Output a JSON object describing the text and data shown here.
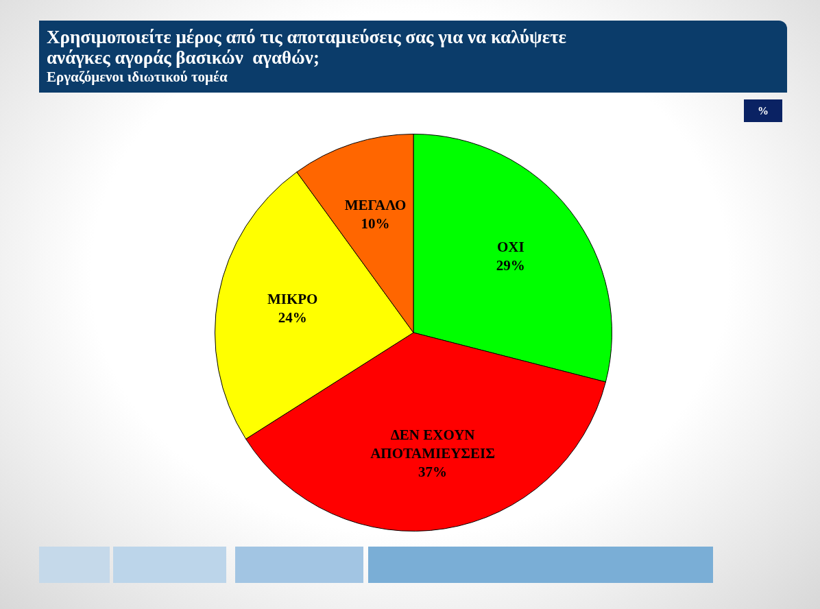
{
  "chart_data": {
    "type": "pie",
    "title": "Χρησιμοποιείτε μέρος από τις αποταμιεύσεις σας για να καλύψετε ανάγκες αγοράς βασικών  αγαθών;",
    "subtitle": "Εργαζόμενοι ιδιωτικού τομέα",
    "categories": [
      "ΟΧΙ",
      "ΔΕΝ ΕΧΟΥΝ ΑΠΟΤΑΜΙΕΥΣΕΙΣ",
      "ΜΙΚΡΟ",
      "ΜΕΓΑΛΟ"
    ],
    "values": [
      29,
      37,
      24,
      10
    ],
    "value_labels": [
      "29%",
      "37%",
      "24%",
      "10%"
    ],
    "colors": [
      "#00ff00",
      "#ff0000",
      "#ffff00",
      "#ff6600"
    ],
    "annotations": [
      "%"
    ],
    "legend": false
  }
}
